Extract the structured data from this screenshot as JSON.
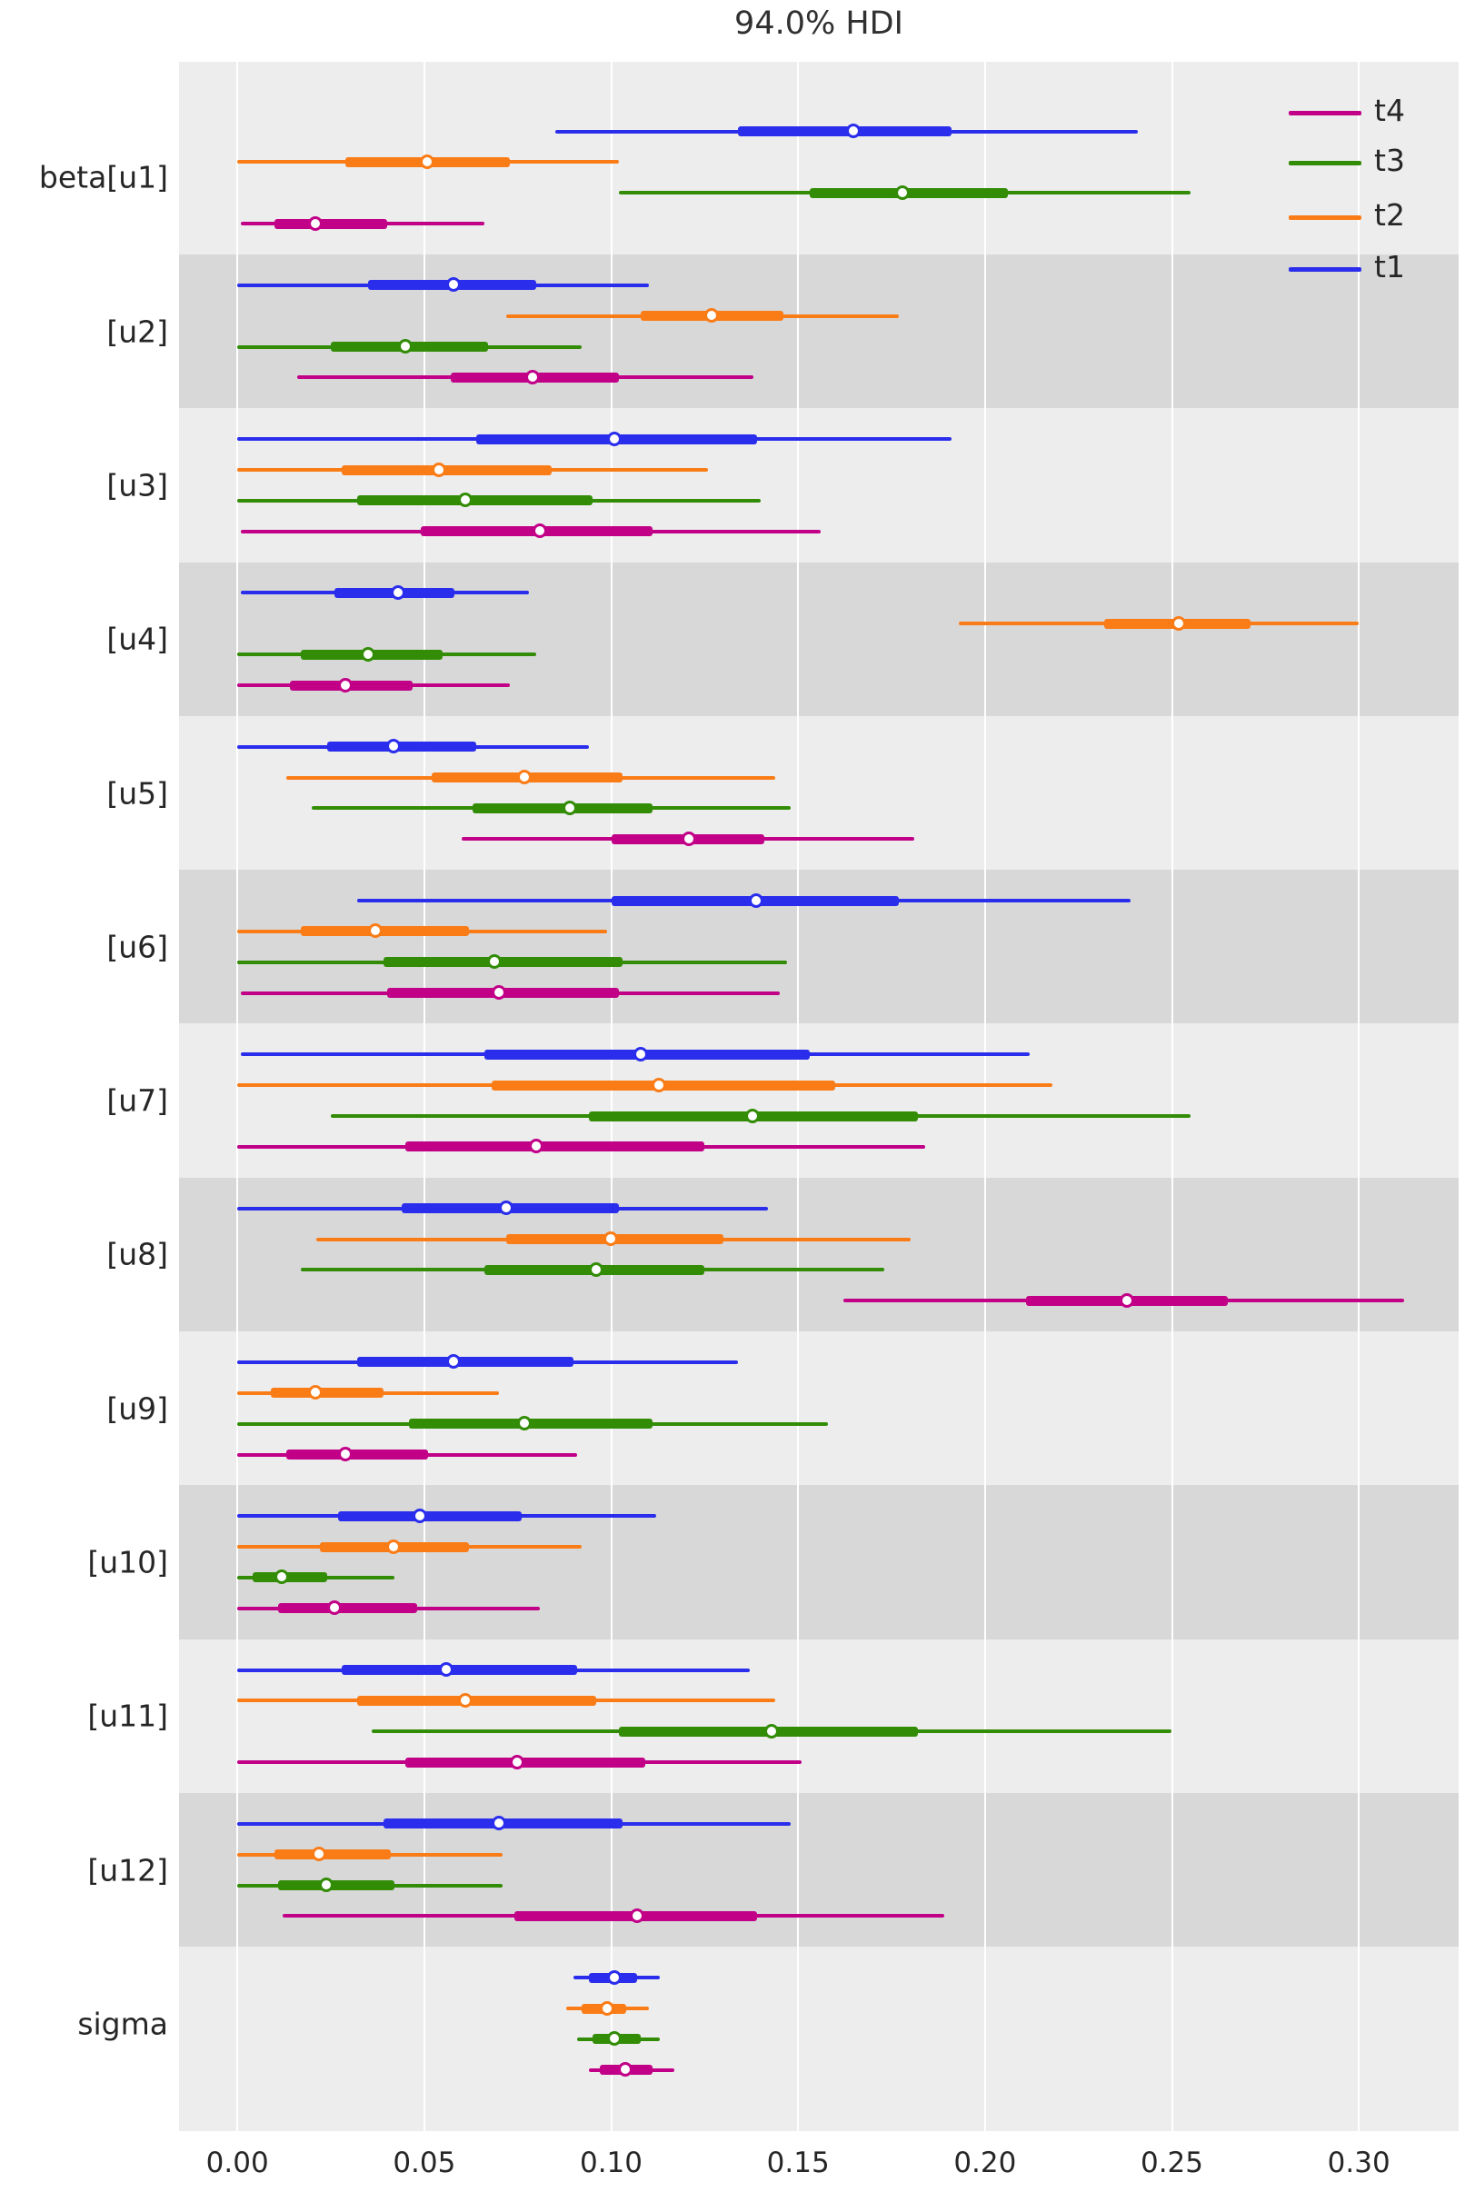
{
  "title": "94.0% HDI",
  "legend": {
    "entries": [
      {
        "label": "t4",
        "color": "#c10087"
      },
      {
        "label": "t3",
        "color": "#328c06"
      },
      {
        "label": "t2",
        "color": "#fa7c17"
      },
      {
        "label": "t1",
        "color": "#2a2eec"
      }
    ]
  },
  "styles": {
    "plot_bg": "#ededed",
    "shaded_band": "#d8d8d8",
    "gridline": "#ffffff",
    "text": "#262626",
    "series_colors": {
      "t1": "#2a2eec",
      "t2": "#fa7c17",
      "t3": "#328c06",
      "t4": "#c10087"
    }
  },
  "chart_data": {
    "type": "forest",
    "title": "94.0% HDI",
    "hdi_prob": 0.94,
    "legend_position": "upper right",
    "grid": true,
    "xlim": [
      -0.0156,
      0.3267
    ],
    "x_tick_values": [
      0.0,
      0.05,
      0.1,
      0.15,
      0.2,
      0.25,
      0.3
    ],
    "x_tick_labels": [
      "0.00",
      "0.05",
      "0.10",
      "0.15",
      "0.20",
      "0.25",
      "0.30"
    ],
    "series_order_top_to_bottom": [
      "t1",
      "t2",
      "t3",
      "t4"
    ],
    "value_format": "[hdi_low, quartile_low, point_estimate, quartile_high, hdi_high]",
    "parameters": [
      {
        "label": "beta[u1]",
        "shaded": false,
        "series": [
          {
            "name": "t1",
            "values": [
              0.085,
              0.134,
              0.165,
              0.191,
              0.241
            ]
          },
          {
            "name": "t2",
            "values": [
              0.0,
              0.029,
              0.051,
              0.073,
              0.102
            ]
          },
          {
            "name": "t3",
            "values": [
              0.102,
              0.153,
              0.178,
              0.206,
              0.255
            ]
          },
          {
            "name": "t4",
            "values": [
              0.001,
              0.01,
              0.021,
              0.04,
              0.066
            ]
          }
        ]
      },
      {
        "label": "[u2]",
        "shaded": true,
        "series": [
          {
            "name": "t1",
            "values": [
              0.0,
              0.035,
              0.058,
              0.08,
              0.11
            ]
          },
          {
            "name": "t2",
            "values": [
              0.072,
              0.108,
              0.127,
              0.146,
              0.177
            ]
          },
          {
            "name": "t3",
            "values": [
              0.0,
              0.025,
              0.045,
              0.067,
              0.092
            ]
          },
          {
            "name": "t4",
            "values": [
              0.016,
              0.057,
              0.079,
              0.102,
              0.138
            ]
          }
        ]
      },
      {
        "label": "[u3]",
        "shaded": false,
        "series": [
          {
            "name": "t1",
            "values": [
              0.0,
              0.064,
              0.101,
              0.139,
              0.191
            ]
          },
          {
            "name": "t2",
            "values": [
              0.0,
              0.028,
              0.054,
              0.084,
              0.126
            ]
          },
          {
            "name": "t3",
            "values": [
              0.0,
              0.032,
              0.061,
              0.095,
              0.14
            ]
          },
          {
            "name": "t4",
            "values": [
              0.001,
              0.049,
              0.081,
              0.111,
              0.156
            ]
          }
        ]
      },
      {
        "label": "[u4]",
        "shaded": true,
        "series": [
          {
            "name": "t1",
            "values": [
              0.001,
              0.026,
              0.043,
              0.058,
              0.078
            ]
          },
          {
            "name": "t2",
            "values": [
              0.193,
              0.232,
              0.252,
              0.271,
              0.3
            ]
          },
          {
            "name": "t3",
            "values": [
              0.0,
              0.017,
              0.035,
              0.055,
              0.08
            ]
          },
          {
            "name": "t4",
            "values": [
              0.0,
              0.014,
              0.029,
              0.047,
              0.073
            ]
          }
        ]
      },
      {
        "label": "[u5]",
        "shaded": false,
        "series": [
          {
            "name": "t1",
            "values": [
              0.0,
              0.024,
              0.042,
              0.064,
              0.094
            ]
          },
          {
            "name": "t2",
            "values": [
              0.013,
              0.052,
              0.077,
              0.103,
              0.144
            ]
          },
          {
            "name": "t3",
            "values": [
              0.02,
              0.063,
              0.089,
              0.111,
              0.148
            ]
          },
          {
            "name": "t4",
            "values": [
              0.06,
              0.1,
              0.121,
              0.141,
              0.181
            ]
          }
        ]
      },
      {
        "label": "[u6]",
        "shaded": true,
        "series": [
          {
            "name": "t1",
            "values": [
              0.032,
              0.1,
              0.139,
              0.177,
              0.239
            ]
          },
          {
            "name": "t2",
            "values": [
              0.0,
              0.017,
              0.037,
              0.062,
              0.099
            ]
          },
          {
            "name": "t3",
            "values": [
              0.0,
              0.039,
              0.069,
              0.103,
              0.147
            ]
          },
          {
            "name": "t4",
            "values": [
              0.001,
              0.04,
              0.07,
              0.102,
              0.145
            ]
          }
        ]
      },
      {
        "label": "[u7]",
        "shaded": false,
        "series": [
          {
            "name": "t1",
            "values": [
              0.001,
              0.066,
              0.108,
              0.153,
              0.212
            ]
          },
          {
            "name": "t2",
            "values": [
              0.0,
              0.068,
              0.113,
              0.16,
              0.218
            ]
          },
          {
            "name": "t3",
            "values": [
              0.025,
              0.094,
              0.138,
              0.182,
              0.255
            ]
          },
          {
            "name": "t4",
            "values": [
              0.0,
              0.045,
              0.08,
              0.125,
              0.184
            ]
          }
        ]
      },
      {
        "label": "[u8]",
        "shaded": true,
        "series": [
          {
            "name": "t1",
            "values": [
              0.0,
              0.044,
              0.072,
              0.102,
              0.142
            ]
          },
          {
            "name": "t2",
            "values": [
              0.021,
              0.072,
              0.1,
              0.13,
              0.18
            ]
          },
          {
            "name": "t3",
            "values": [
              0.017,
              0.066,
              0.096,
              0.125,
              0.173
            ]
          },
          {
            "name": "t4",
            "values": [
              0.162,
              0.211,
              0.238,
              0.265,
              0.312
            ]
          }
        ]
      },
      {
        "label": "[u9]",
        "shaded": false,
        "series": [
          {
            "name": "t1",
            "values": [
              0.0,
              0.032,
              0.058,
              0.09,
              0.134
            ]
          },
          {
            "name": "t2",
            "values": [
              0.0,
              0.009,
              0.021,
              0.039,
              0.07
            ]
          },
          {
            "name": "t3",
            "values": [
              0.0,
              0.046,
              0.077,
              0.111,
              0.158
            ]
          },
          {
            "name": "t4",
            "values": [
              0.0,
              0.013,
              0.029,
              0.051,
              0.091
            ]
          }
        ]
      },
      {
        "label": "[u10]",
        "shaded": true,
        "series": [
          {
            "name": "t1",
            "values": [
              0.0,
              0.027,
              0.049,
              0.076,
              0.112
            ]
          },
          {
            "name": "t2",
            "values": [
              0.0,
              0.022,
              0.042,
              0.062,
              0.092
            ]
          },
          {
            "name": "t3",
            "values": [
              0.0,
              0.004,
              0.012,
              0.024,
              0.042
            ]
          },
          {
            "name": "t4",
            "values": [
              0.0,
              0.011,
              0.026,
              0.048,
              0.081
            ]
          }
        ]
      },
      {
        "label": "[u11]",
        "shaded": false,
        "series": [
          {
            "name": "t1",
            "values": [
              0.0,
              0.028,
              0.056,
              0.091,
              0.137
            ]
          },
          {
            "name": "t2",
            "values": [
              0.0,
              0.032,
              0.061,
              0.096,
              0.144
            ]
          },
          {
            "name": "t3",
            "values": [
              0.036,
              0.102,
              0.143,
              0.182,
              0.25
            ]
          },
          {
            "name": "t4",
            "values": [
              0.0,
              0.045,
              0.075,
              0.109,
              0.151
            ]
          }
        ]
      },
      {
        "label": "[u12]",
        "shaded": true,
        "series": [
          {
            "name": "t1",
            "values": [
              0.0,
              0.039,
              0.07,
              0.103,
              0.148
            ]
          },
          {
            "name": "t2",
            "values": [
              0.0,
              0.01,
              0.022,
              0.041,
              0.071
            ]
          },
          {
            "name": "t3",
            "values": [
              0.0,
              0.011,
              0.024,
              0.042,
              0.071
            ]
          },
          {
            "name": "t4",
            "values": [
              0.012,
              0.074,
              0.107,
              0.139,
              0.189
            ]
          }
        ]
      },
      {
        "label": "sigma",
        "shaded": false,
        "series": [
          {
            "name": "t1",
            "values": [
              0.09,
              0.094,
              0.101,
              0.107,
              0.113
            ]
          },
          {
            "name": "t2",
            "values": [
              0.088,
              0.092,
              0.099,
              0.104,
              0.11
            ]
          },
          {
            "name": "t3",
            "values": [
              0.091,
              0.095,
              0.101,
              0.108,
              0.113
            ]
          },
          {
            "name": "t4",
            "values": [
              0.094,
              0.097,
              0.104,
              0.111,
              0.117
            ]
          }
        ]
      }
    ]
  }
}
